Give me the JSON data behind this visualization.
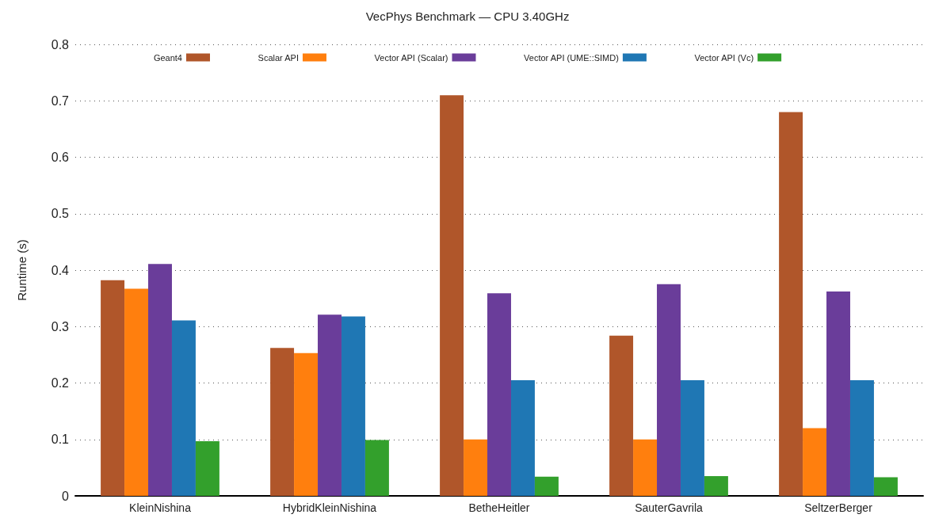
{
  "chart_data": {
    "type": "bar",
    "title": "VecPhys Benchmark — CPU 3.40GHz",
    "ylabel": "Runtime (s)",
    "categories": [
      "KleinNishina",
      "HybridKleinNishina",
      "BetheHeitler",
      "SauterGavrila",
      "SeltzerBerger"
    ],
    "series": [
      {
        "name": "Geant4",
        "color": "#b0562a",
        "values": [
          0.382,
          0.262,
          0.71,
          0.284,
          0.68
        ]
      },
      {
        "name": "Scalar API",
        "color": "#ff7f0e",
        "values": [
          0.367,
          0.253,
          0.1,
          0.1,
          0.12
        ]
      },
      {
        "name": "Vector API (Scalar)",
        "color": "#6a3d9a",
        "values": [
          0.411,
          0.321,
          0.359,
          0.375,
          0.362
        ]
      },
      {
        "name": "Vector API (UME::SIMD)",
        "color": "#1f77b4",
        "values": [
          0.311,
          0.318,
          0.205,
          0.205,
          0.205
        ]
      },
      {
        "name": "Vector API (Vc)",
        "color": "#33a02c",
        "values": [
          0.097,
          0.099,
          0.034,
          0.035,
          0.033
        ]
      }
    ],
    "ylim": [
      0,
      0.8
    ],
    "yticks": [
      0,
      0.1,
      0.2,
      0.3,
      0.4,
      0.5,
      0.6,
      0.7,
      0.8
    ],
    "grid": "y",
    "legend": "top"
  }
}
